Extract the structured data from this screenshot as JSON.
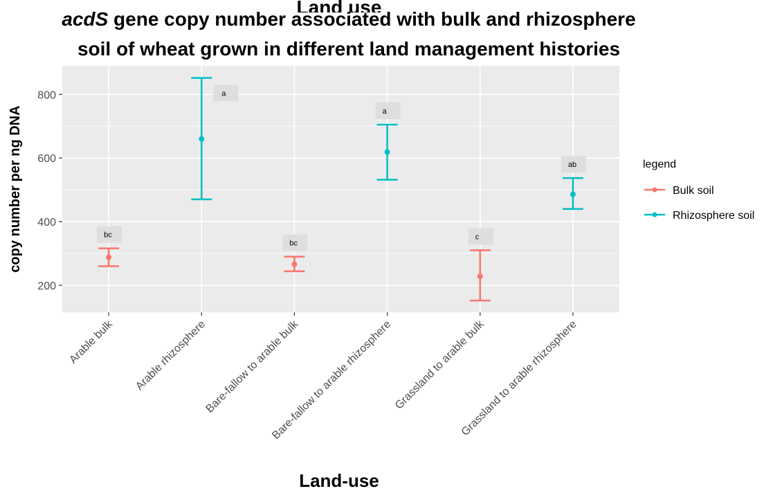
{
  "chart_data": {
    "type": "scatter",
    "title_italic": "acdS",
    "title_line1_rest": " gene copy number associated with bulk and rhizosphere",
    "title_line2": "soil of wheat grown in different land management histories",
    "ghost_title": "Land use",
    "xlabel": "Land-use",
    "ylabel": "copy number per ng DNA",
    "categories": [
      "Arable bulk",
      "Arable rhizosphere",
      "Bare-fallow to arable bulk",
      "Bare-fallow to arable rhizosphere",
      "Grassland to arable bulk",
      "Grassland to arable rhizosphere"
    ],
    "yticks": [
      200,
      400,
      600,
      800
    ],
    "ytick_labels": [
      "200",
      "400",
      "600",
      "800"
    ],
    "ylim": [
      115,
      890
    ],
    "grid": true,
    "legend": {
      "title": "legend",
      "placement": "right",
      "entries": [
        "Bulk soil",
        "Rhizosphere soil"
      ]
    },
    "colors": {
      "Bulk soil": "#F8766D",
      "Rhizosphere soil": "#00BFC4"
    },
    "points": [
      {
        "category": "Arable bulk",
        "series": "Bulk soil",
        "mean": 288,
        "lower": 260,
        "upper": 316,
        "label": "bc"
      },
      {
        "category": "Arable rhizosphere",
        "series": "Rhizosphere soil",
        "mean": 660,
        "lower": 470,
        "upper": 852,
        "label": "a"
      },
      {
        "category": "Bare-fallow to arable bulk",
        "series": "Bulk soil",
        "mean": 266,
        "lower": 244,
        "upper": 290,
        "label": "bc"
      },
      {
        "category": "Bare-fallow to arable rhizosphere",
        "series": "Rhizosphere soil",
        "mean": 619,
        "lower": 532,
        "upper": 705,
        "label": "a"
      },
      {
        "category": "Grassland to arable bulk",
        "series": "Bulk soil",
        "mean": 228,
        "lower": 152,
        "upper": 310,
        "label": "c"
      },
      {
        "category": "Grassland to arable rhizosphere",
        "series": "Rhizosphere soil",
        "mean": 486,
        "lower": 440,
        "upper": 537,
        "label": "ab"
      }
    ]
  }
}
